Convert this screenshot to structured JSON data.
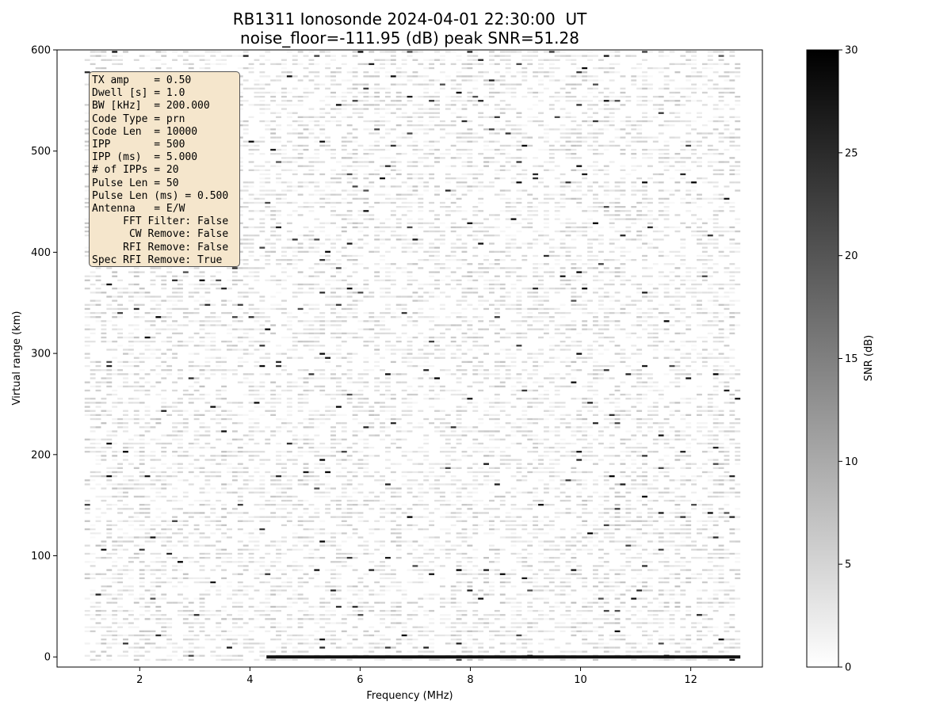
{
  "title": {
    "line1": "RB1311 Ionosonde 2024-04-01 22:30:00  UT",
    "line2": "noise_floor=-111.95 (dB) peak SNR=51.28"
  },
  "info_box": [
    "TX amp    = 0.50",
    "Dwell [s] = 1.0",
    "BW [kHz]  = 200.000",
    "Code Type = prn",
    "Code Len  = 10000",
    "IPP       = 500",
    "IPP (ms)  = 5.000",
    "# of IPPs = 20",
    "Pulse Len = 50",
    "Pulse Len (ms) = 0.500",
    "Antenna   = E/W",
    "     FFT Filter: False",
    "      CW Remove: False",
    "     RFI Remove: False",
    "Spec RFI Remove: True"
  ],
  "chart_data": {
    "type": "heatmap",
    "title": "RB1311 Ionosonde 2024-04-01 22:30:00  UT\nnoise_floor=-111.95 (dB) peak SNR=51.28",
    "xlabel": "Frequency (MHz)",
    "ylabel": "Virtual range (km)",
    "xlim": [
      0.5,
      13.3
    ],
    "ylim": [
      -10,
      600
    ],
    "x_ticks": [
      2,
      4,
      6,
      8,
      10,
      12
    ],
    "y_ticks": [
      0,
      100,
      200,
      300,
      400,
      500,
      600
    ],
    "freq_range_mhz": [
      1.0,
      12.9
    ],
    "range_span_km": [
      -5,
      600
    ],
    "colormap": "gray_r",
    "colorbar": {
      "label": "SNR (dB)",
      "min": 0,
      "max": 30,
      "ticks": [
        0,
        5,
        10,
        15,
        20,
        25,
        30
      ]
    },
    "features": [
      {
        "description": "strong echo band near zero range",
        "range_km": 0,
        "freq_mhz": [
          4.3,
          12.9
        ],
        "snr_db": 28
      }
    ],
    "grid": false
  }
}
